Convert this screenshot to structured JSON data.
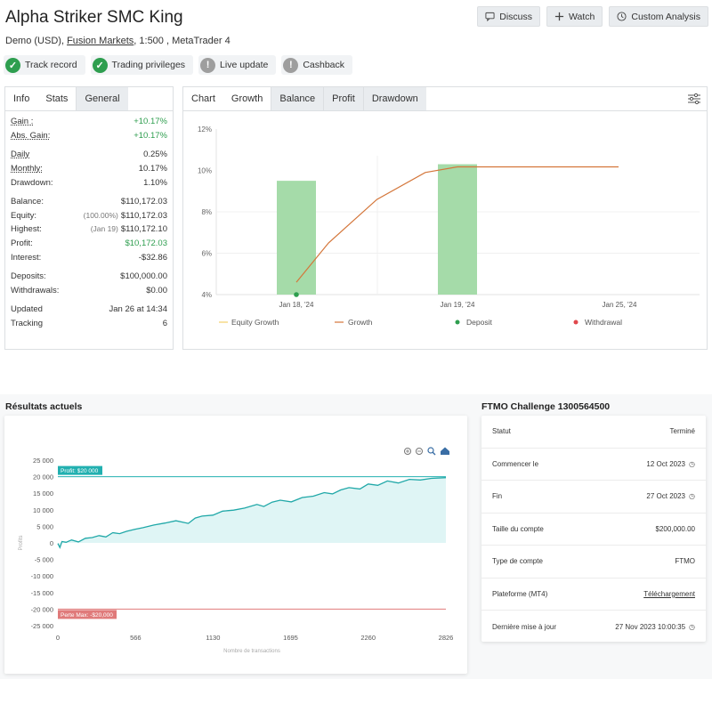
{
  "header": {
    "title": "Alpha Striker SMC King",
    "account_type": "Demo (USD),",
    "broker": "Fusion Markets",
    "leverage_platform": ", 1:500 , MetaTrader 4",
    "buttons": {
      "discuss": "Discuss",
      "watch": "Watch",
      "custom": "Custom Analysis"
    }
  },
  "badges": [
    {
      "label": "Track record",
      "status": "ok"
    },
    {
      "label": "Trading privileges",
      "status": "ok"
    },
    {
      "label": "Live update",
      "status": "na"
    },
    {
      "label": "Cashback",
      "status": "na"
    }
  ],
  "stats_panel": {
    "tabs": [
      "Info",
      "Stats",
      "General"
    ],
    "gain": {
      "label": "Gain :",
      "value": "+10.17%"
    },
    "abs_gain": {
      "label": "Abs. Gain:",
      "value": "+10.17%"
    },
    "daily": {
      "label": "Daily",
      "value": "0.25%"
    },
    "monthly": {
      "label": "Monthly:",
      "value": "10.17%"
    },
    "drawdown": {
      "label": "Drawdown:",
      "value": "1.10%"
    },
    "balance": {
      "label": "Balance:",
      "value": "$110,172.03"
    },
    "equity": {
      "label": "Equity:",
      "pre": "(100.00%)",
      "value": "$110,172.03"
    },
    "highest": {
      "label": "Highest:",
      "pre": "(Jan 19)",
      "value": "$110,172.10"
    },
    "profit": {
      "label": "Profit:",
      "value": "$10,172.03"
    },
    "interest": {
      "label": "Interest:",
      "value": "-$32.86"
    },
    "deposits": {
      "label": "Deposits:",
      "value": "$100,000.00"
    },
    "withdrawals": {
      "label": "Withdrawals:",
      "value": "$0.00"
    },
    "updated": {
      "label": "Updated",
      "value": "Jan 26 at 14:34"
    },
    "tracking": {
      "label": "Tracking",
      "value": "6"
    }
  },
  "chart_panel": {
    "tabs": [
      "Chart",
      "Growth",
      "Balance",
      "Profit",
      "Drawdown"
    ],
    "legend": [
      "Equity Growth",
      "Growth",
      "Deposit",
      "Withdrawal"
    ],
    "colors": {
      "bar": "#a5dba9",
      "growth": "#d4763a",
      "equity": "#f2d06b",
      "deposit": "#2e9e4f",
      "withdrawal": "#e0474c"
    }
  },
  "chart_data": [
    {
      "type": "bar",
      "categories": [
        "Jan 18, '24",
        "Jan 19, '24",
        "Jan 25, '24"
      ],
      "yticks": [
        "12%",
        "10%",
        "8%",
        "6%",
        "4%"
      ],
      "ylim": [
        4,
        12
      ],
      "series": [
        {
          "name": "Growth",
          "type": "bar",
          "values": [
            9.5,
            10.3,
            null
          ]
        },
        {
          "name": "Growth",
          "type": "line",
          "x": [
            0,
            0.2,
            0.5,
            0.8,
            1.0,
            1.5,
            2.0
          ],
          "y": [
            4.6,
            6.5,
            8.6,
            9.9,
            10.17,
            10.17,
            10.17
          ]
        }
      ]
    },
    {
      "type": "line",
      "yticks": [
        "25 000",
        "20 000",
        "15 000",
        "10 000",
        "5 000",
        "0",
        "-5 000",
        "-10 000",
        "-15 000",
        "-20 000",
        "-25 000"
      ],
      "xticks": [
        "0",
        "566",
        "1130",
        "1695",
        "2260",
        "2826"
      ],
      "ylim": [
        -25000,
        25000
      ],
      "xlim": [
        0,
        2826
      ],
      "series": [
        {
          "x": [
            0,
            15,
            30,
            60,
            100,
            150,
            200,
            250,
            300,
            350,
            400,
            450,
            500,
            560,
            620,
            700,
            780,
            860,
            950,
            1000,
            1050,
            1130,
            1200,
            1280,
            1360,
            1450,
            1500,
            1560,
            1620,
            1700,
            1780,
            1860,
            1940,
            2000,
            2060,
            2120,
            2200,
            2260,
            2330,
            2400,
            2480,
            2560,
            2640,
            2720,
            2826
          ],
          "y": [
            -200,
            -1400,
            400,
            200,
            900,
            300,
            1400,
            1600,
            2200,
            1800,
            3100,
            2800,
            3500,
            4100,
            4600,
            5400,
            6000,
            6700,
            5900,
            7500,
            8100,
            8400,
            9600,
            9900,
            10500,
            11600,
            11000,
            12300,
            12900,
            12400,
            13700,
            14100,
            15200,
            14800,
            16000,
            16700,
            16300,
            17800,
            17400,
            18700,
            18100,
            19200,
            19000,
            19500,
            19700
          ]
        }
      ],
      "lines": [
        {
          "label": "Profit: $20 000",
          "value": 20000,
          "color": "#22b0b0"
        },
        {
          "label": "Perte Max: -$20,000",
          "value": -20000,
          "color": "#e07a7a"
        }
      ]
    }
  ],
  "results": {
    "title": "Résultats actuels",
    "y_axis_label": "Profits",
    "x_axis_label": "Nombre de transactions"
  },
  "ftmo": {
    "title": "FTMO Challenge 1300564500",
    "rows": [
      {
        "label": "Statut",
        "value": "Terminé"
      },
      {
        "label": "Commencer le",
        "value": "12 Oct 2023"
      },
      {
        "label": "Fin",
        "value": "27 Oct 2023"
      },
      {
        "label": "Taille du compte",
        "value": "$200,000.00"
      },
      {
        "label": "Type de compte",
        "value": "FTMO"
      },
      {
        "label": "Plateforme (MT4)",
        "value": "Téléchargement"
      },
      {
        "label": "Dernière mise à jour",
        "value": "27 Nov 2023 10:00:35"
      }
    ]
  }
}
